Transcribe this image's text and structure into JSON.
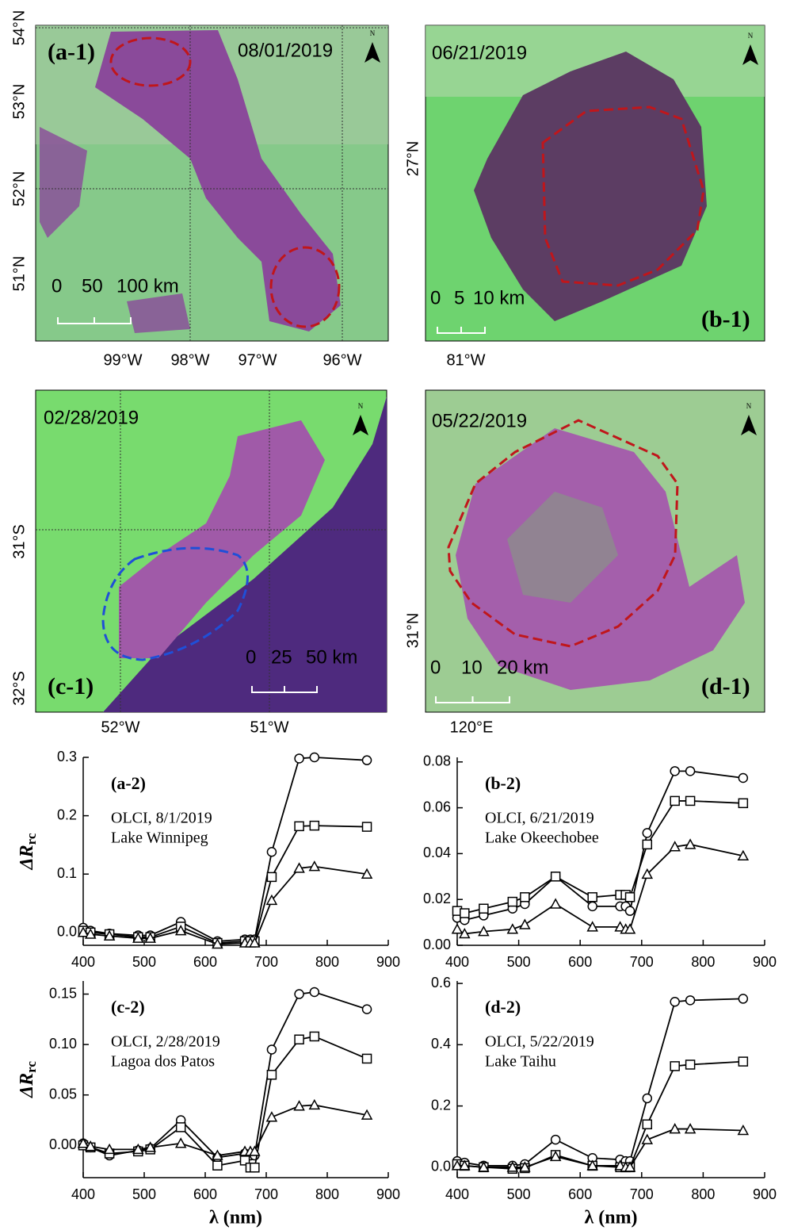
{
  "maps": [
    {
      "panel": "(a-1)",
      "date": "08/01/2019",
      "lat_labels": [
        "54°N",
        "53°N",
        "52°N",
        "51°N"
      ],
      "lon_labels": [
        "99°W",
        "98°W",
        "97°W",
        "96°W"
      ],
      "scale_labels": [
        "0",
        "50",
        "100 km"
      ],
      "north": "N"
    },
    {
      "panel": "(b-1)",
      "date": "06/21/2019",
      "lat_labels": [
        "27°N"
      ],
      "lon_labels": [
        "81°W"
      ],
      "scale_labels": [
        "0",
        "5",
        "10 km"
      ],
      "north": "N"
    },
    {
      "panel": "(c-1)",
      "date": "02/28/2019",
      "lat_labels": [
        "31°S",
        "32°S"
      ],
      "lon_labels": [
        "52°W",
        "51°W"
      ],
      "scale_labels": [
        "0",
        "25",
        "50 km"
      ],
      "north": "N"
    },
    {
      "panel": "(d-1)",
      "date": "05/22/2019",
      "lat_labels": [
        "31°N"
      ],
      "lon_labels": [
        "120°E"
      ],
      "scale_labels": [
        "0",
        "10",
        "20 km"
      ],
      "north": "N"
    }
  ],
  "chart_data": [
    {
      "type": "line",
      "x": [
        400,
        412,
        443,
        490,
        510,
        560,
        620,
        665,
        674,
        681,
        709,
        754,
        779,
        865
      ],
      "xlim": [
        400,
        900
      ],
      "xticks": [
        400,
        500,
        600,
        700,
        800,
        900
      ],
      "ylim": [
        -0.022,
        0.3
      ],
      "yticks": [
        {
          "value": 0,
          "label": "0.0"
        },
        0.1,
        0.2,
        0.3
      ],
      "ylabel": {
        "text": "ΔR",
        "subscript": "rc"
      },
      "annotations": [
        "(a-2)",
        "OLCI, 8/1/2019",
        "Lake Winnipeg"
      ],
      "series": [
        {
          "marker": "circle",
          "color": "#000000",
          "values": [
            0.008,
            0.003,
            -0.002,
            -0.005,
            -0.005,
            0.018,
            -0.015,
            -0.012,
            -0.012,
            -0.012,
            0.138,
            0.298,
            0.3,
            0.295
          ]
        },
        {
          "marker": "square",
          "color": "#000000",
          "values": [
            0.003,
            0.0,
            -0.003,
            -0.008,
            -0.008,
            0.01,
            -0.018,
            -0.015,
            -0.015,
            -0.015,
            0.095,
            0.182,
            0.183,
            0.181
          ]
        },
        {
          "marker": "triangle",
          "color": "#000000",
          "values": [
            0.0,
            -0.003,
            -0.006,
            -0.01,
            -0.01,
            0.003,
            -0.02,
            -0.018,
            -0.018,
            -0.018,
            0.055,
            0.11,
            0.113,
            0.1
          ]
        }
      ]
    },
    {
      "type": "line",
      "x": [
        400,
        412,
        443,
        490,
        510,
        560,
        620,
        665,
        674,
        681,
        709,
        754,
        779,
        865
      ],
      "xlim": [
        400,
        900
      ],
      "xticks": [
        400,
        500,
        600,
        700,
        800,
        900
      ],
      "ylim": [
        0,
        0.082
      ],
      "yticks": [
        {
          "value": 0,
          "label": "0.00"
        },
        0.02,
        0.04,
        0.06,
        0.08
      ],
      "annotations": [
        "(b-2)",
        "OLCI, 6/21/2019",
        "Lake Okeechobee"
      ],
      "series": [
        {
          "marker": "circle",
          "color": "#000000",
          "values": [
            0.012,
            0.011,
            0.013,
            0.016,
            0.018,
            0.03,
            0.017,
            0.017,
            0.017,
            0.015,
            0.049,
            0.076,
            0.076,
            0.073
          ]
        },
        {
          "marker": "square",
          "color": "#000000",
          "values": [
            0.015,
            0.014,
            0.016,
            0.019,
            0.021,
            0.03,
            0.021,
            0.022,
            0.022,
            0.021,
            0.044,
            0.063,
            0.063,
            0.062
          ]
        },
        {
          "marker": "triangle",
          "color": "#000000",
          "values": [
            0.007,
            0.005,
            0.006,
            0.007,
            0.009,
            0.018,
            0.008,
            0.008,
            0.007,
            0.007,
            0.031,
            0.043,
            0.044,
            0.039
          ]
        }
      ]
    },
    {
      "type": "line",
      "x": [
        400,
        412,
        443,
        490,
        510,
        560,
        620,
        665,
        674,
        681,
        709,
        754,
        779,
        865
      ],
      "xlim": [
        400,
        900
      ],
      "xticks": [
        400,
        500,
        600,
        700,
        800,
        900
      ],
      "ylim": [
        -0.032,
        0.163
      ],
      "yticks": [
        {
          "value": 0,
          "label": "0.00"
        },
        0.05,
        {
          "value": 0.1,
          "label": "0.10"
        },
        0.15
      ],
      "ylabel": {
        "text": "ΔR",
        "subscript": "rc"
      },
      "xlabel": "λ (nm)",
      "annotations": [
        "(c-2)",
        "OLCI, 2/28/2019",
        "Lagoa dos Patos"
      ],
      "series": [
        {
          "marker": "circle",
          "color": "#000000",
          "values": [
            0.002,
            -0.002,
            -0.01,
            -0.005,
            -0.003,
            0.025,
            -0.012,
            -0.008,
            -0.01,
            -0.01,
            0.095,
            0.15,
            0.152,
            0.135
          ]
        },
        {
          "marker": "square",
          "color": "#000000",
          "values": [
            0.0,
            -0.002,
            -0.008,
            -0.006,
            -0.004,
            0.018,
            -0.02,
            -0.015,
            -0.022,
            -0.022,
            0.07,
            0.105,
            0.108,
            0.086
          ]
        },
        {
          "marker": "triangle",
          "color": "#000000",
          "values": [
            0.002,
            -0.001,
            -0.004,
            -0.004,
            -0.002,
            0.002,
            -0.01,
            -0.006,
            -0.006,
            -0.006,
            0.028,
            0.039,
            0.04,
            0.03
          ]
        }
      ]
    },
    {
      "type": "line",
      "x": [
        400,
        412,
        443,
        490,
        510,
        560,
        620,
        665,
        674,
        681,
        709,
        754,
        779,
        865
      ],
      "xlim": [
        400,
        900
      ],
      "xticks": [
        400,
        500,
        600,
        700,
        800,
        900
      ],
      "ylim": [
        -0.034,
        0.608
      ],
      "yticks": [
        {
          "value": 0,
          "label": "0.0"
        },
        0.2,
        0.4,
        0.6
      ],
      "xlabel": "λ (nm)",
      "annotations": [
        "(d-2)",
        "OLCI, 5/22/2019",
        "Lake Taihu"
      ],
      "series": [
        {
          "marker": "circle",
          "color": "#000000",
          "values": [
            0.02,
            0.015,
            0.005,
            0.005,
            0.01,
            0.09,
            0.03,
            0.025,
            0.02,
            0.02,
            0.225,
            0.54,
            0.545,
            0.55
          ]
        },
        {
          "marker": "square",
          "color": "#000000",
          "values": [
            0.01,
            0.005,
            0.0,
            -0.005,
            -0.003,
            0.04,
            0.005,
            0.0,
            0.0,
            0.0,
            0.14,
            0.33,
            0.335,
            0.345
          ]
        },
        {
          "marker": "triangle",
          "color": "#000000",
          "values": [
            0.005,
            0.005,
            0.0,
            0.0,
            0.0,
            0.035,
            0.005,
            0.005,
            0.0,
            0.0,
            0.09,
            0.125,
            0.125,
            0.12
          ]
        }
      ]
    }
  ]
}
